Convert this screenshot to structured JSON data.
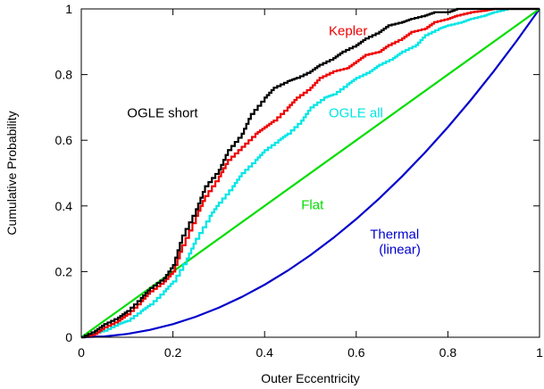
{
  "chart_data": {
    "type": "line",
    "title": "",
    "xlabel": "Outer Eccentricity",
    "ylabel": "Cumulative Probability",
    "xlim": [
      0,
      1
    ],
    "ylim": [
      0,
      1
    ],
    "grid": false,
    "x_ticks": [
      {
        "value": 0,
        "label": "0"
      },
      {
        "value": 0.2,
        "label": "0.2"
      },
      {
        "value": 0.4,
        "label": "0.4"
      },
      {
        "value": 0.6,
        "label": "0.6"
      },
      {
        "value": 0.8,
        "label": "0.8"
      },
      {
        "value": 1,
        "label": "1"
      }
    ],
    "y_ticks": [
      {
        "value": 0,
        "label": "0"
      },
      {
        "value": 0.2,
        "label": "0.2"
      },
      {
        "value": 0.4,
        "label": "0.4"
      },
      {
        "value": 0.6,
        "label": "0.6"
      },
      {
        "value": 0.8,
        "label": "0.8"
      },
      {
        "value": 1,
        "label": "1"
      }
    ],
    "series": [
      {
        "name": "Thermal (linear)",
        "label_lines": [
          "Thermal",
          "(linear)"
        ],
        "color": "#0000cc",
        "step": false,
        "label_at": [
          0.63,
          0.3
        ],
        "x": [
          0,
          0.05,
          0.1,
          0.15,
          0.2,
          0.25,
          0.3,
          0.35,
          0.4,
          0.45,
          0.5,
          0.55,
          0.6,
          0.65,
          0.7,
          0.75,
          0.8,
          0.85,
          0.9,
          0.95,
          1
        ],
        "y": [
          0,
          0.0025,
          0.01,
          0.0225,
          0.04,
          0.0625,
          0.09,
          0.1225,
          0.16,
          0.2025,
          0.25,
          0.3025,
          0.36,
          0.4225,
          0.49,
          0.5625,
          0.64,
          0.7225,
          0.81,
          0.9025,
          1
        ]
      },
      {
        "name": "Flat",
        "label_lines": [
          "Flat"
        ],
        "color": "#00dd00",
        "step": false,
        "label_at": [
          0.48,
          0.39
        ],
        "x": [
          0,
          1
        ],
        "y": [
          0,
          1
        ]
      },
      {
        "name": "OGLE all",
        "label_lines": [
          "OGLE all"
        ],
        "color": "#00e5e5",
        "step": true,
        "label_at": [
          0.54,
          0.67
        ],
        "x": [
          0,
          0.02,
          0.05,
          0.08,
          0.1,
          0.13,
          0.15,
          0.18,
          0.2,
          0.23,
          0.25,
          0.28,
          0.3,
          0.33,
          0.35,
          0.38,
          0.4,
          0.43,
          0.45,
          0.48,
          0.5,
          0.53,
          0.55,
          0.58,
          0.6,
          0.63,
          0.65,
          0.68,
          0.7,
          0.73,
          0.75,
          0.78,
          0.8,
          0.83,
          0.85,
          0.88,
          0.9,
          0.93,
          1
        ],
        "y": [
          0,
          0.01,
          0.02,
          0.04,
          0.05,
          0.08,
          0.1,
          0.14,
          0.17,
          0.24,
          0.3,
          0.37,
          0.41,
          0.46,
          0.5,
          0.54,
          0.57,
          0.6,
          0.62,
          0.66,
          0.7,
          0.73,
          0.74,
          0.77,
          0.79,
          0.81,
          0.83,
          0.85,
          0.87,
          0.89,
          0.92,
          0.94,
          0.95,
          0.96,
          0.97,
          0.98,
          0.99,
          1,
          1
        ]
      },
      {
        "name": "Kepler",
        "label_lines": [
          "Kepler"
        ],
        "color": "#ee0000",
        "step": true,
        "label_at": [
          0.54,
          0.92
        ],
        "x": [
          0,
          0.03,
          0.05,
          0.08,
          0.1,
          0.13,
          0.15,
          0.18,
          0.2,
          0.22,
          0.25,
          0.27,
          0.3,
          0.32,
          0.35,
          0.38,
          0.4,
          0.42,
          0.45,
          0.47,
          0.5,
          0.52,
          0.55,
          0.58,
          0.6,
          0.62,
          0.65,
          0.67,
          0.7,
          0.72,
          0.75,
          0.77,
          0.8,
          0.82,
          0.85,
          0.88,
          0.9,
          1
        ],
        "y": [
          0,
          0.01,
          0.03,
          0.05,
          0.07,
          0.11,
          0.14,
          0.17,
          0.2,
          0.28,
          0.37,
          0.43,
          0.49,
          0.54,
          0.58,
          0.62,
          0.64,
          0.66,
          0.7,
          0.73,
          0.76,
          0.79,
          0.81,
          0.82,
          0.84,
          0.86,
          0.87,
          0.89,
          0.91,
          0.93,
          0.94,
          0.96,
          0.97,
          0.98,
          0.99,
          0.995,
          1,
          1
        ]
      },
      {
        "name": "OGLE short",
        "label_lines": [
          "OGLE short"
        ],
        "color": "#000000",
        "step": true,
        "label_at": [
          0.1,
          0.67
        ],
        "x": [
          0,
          0.03,
          0.05,
          0.08,
          0.1,
          0.13,
          0.15,
          0.18,
          0.2,
          0.22,
          0.25,
          0.27,
          0.3,
          0.32,
          0.35,
          0.37,
          0.4,
          0.42,
          0.45,
          0.47,
          0.5,
          0.52,
          0.55,
          0.57,
          0.6,
          0.62,
          0.65,
          0.67,
          0.7,
          0.72,
          0.75,
          0.77,
          0.8,
          0.82,
          0.85,
          0.88,
          0.9,
          1
        ],
        "y": [
          0,
          0.02,
          0.04,
          0.06,
          0.08,
          0.12,
          0.15,
          0.18,
          0.22,
          0.31,
          0.39,
          0.46,
          0.51,
          0.57,
          0.62,
          0.68,
          0.73,
          0.76,
          0.78,
          0.79,
          0.81,
          0.83,
          0.85,
          0.87,
          0.89,
          0.91,
          0.93,
          0.95,
          0.96,
          0.97,
          0.98,
          0.99,
          0.99,
          1,
          1,
          1,
          1,
          1
        ]
      }
    ]
  }
}
